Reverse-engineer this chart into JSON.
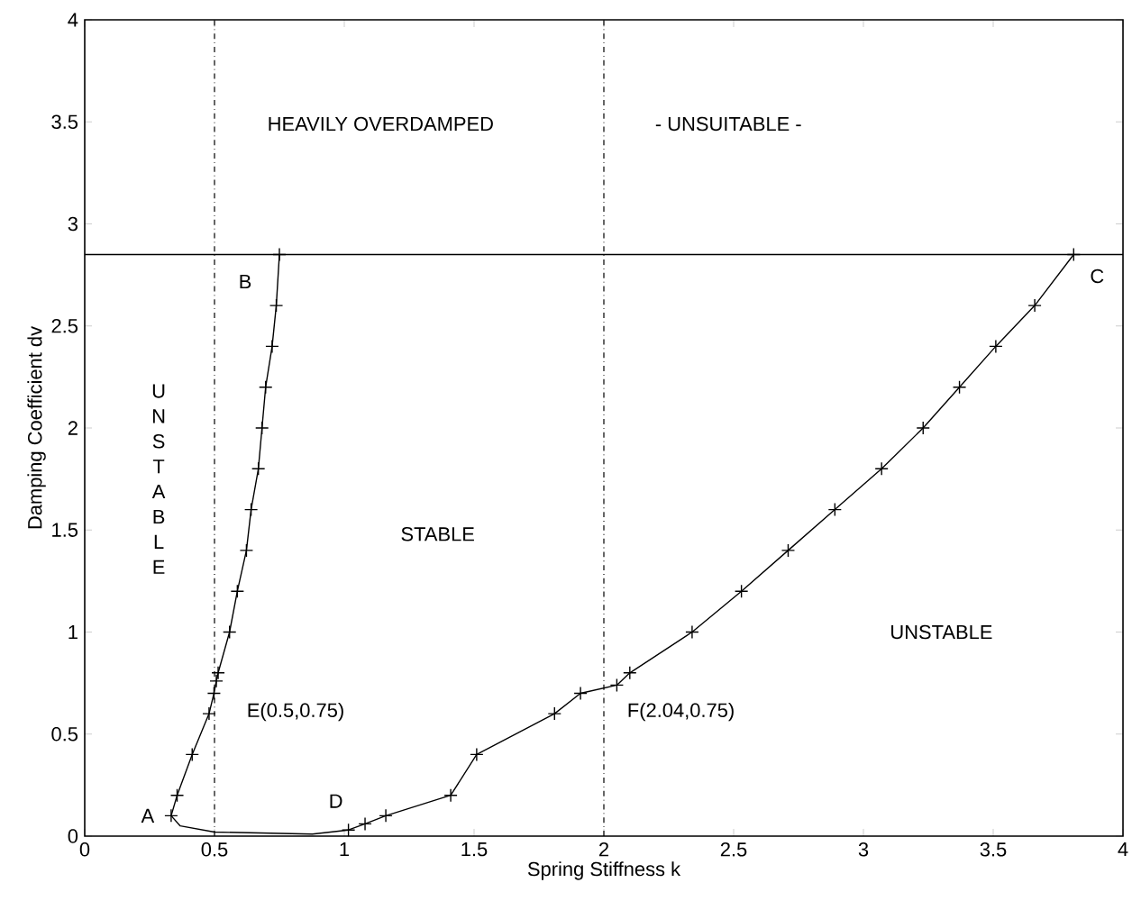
{
  "chart_data": {
    "type": "line",
    "xlabel": "Spring Stiffness k",
    "ylabel": "Damping Coefficient dv",
    "xlim": [
      0,
      4
    ],
    "ylim": [
      0,
      4
    ],
    "xticks": [
      0,
      0.5,
      1,
      1.5,
      2,
      2.5,
      3,
      3.5,
      4
    ],
    "yticks": [
      0,
      0.5,
      1,
      1.5,
      2,
      2.5,
      3,
      3.5,
      4
    ],
    "grid": false,
    "line_style": "solid",
    "series": [
      {
        "color": "#000000",
        "marker": "cross",
        "x": [
          0.75,
          0.738,
          0.722,
          0.697,
          0.683,
          0.669,
          0.641,
          0.623,
          0.588,
          0.558,
          0.514,
          0.507,
          0.498,
          0.479,
          0.414,
          0.356,
          0.333
        ],
        "values": [
          2.85,
          2.6,
          2.4,
          2.2,
          2.0,
          1.8,
          1.6,
          1.4,
          1.2,
          1.0,
          0.8,
          0.76,
          0.7,
          0.6,
          0.4,
          0.2,
          0.1
        ]
      },
      {
        "color": "#000000",
        "marker": "none",
        "x": [
          0.333,
          0.368,
          0.5,
          0.877,
          1.016
        ],
        "values": [
          0.1,
          0.05,
          0.02,
          0.01,
          0.03
        ]
      },
      {
        "color": "#000000",
        "marker": "cross",
        "x": [
          1.016,
          1.08,
          1.16,
          1.41,
          1.51,
          1.81,
          1.91,
          2.05,
          2.1,
          2.34,
          2.53,
          2.71,
          2.89,
          3.07,
          3.23,
          3.37,
          3.51,
          3.66,
          3.81
        ],
        "values": [
          0.03,
          0.06,
          0.1,
          0.2,
          0.4,
          0.6,
          0.7,
          0.74,
          0.8,
          1.0,
          1.2,
          1.4,
          1.6,
          1.8,
          2.0,
          2.2,
          2.4,
          2.6,
          2.85
        ]
      }
    ],
    "ref_lines": [
      {
        "axis": "x",
        "value": 0.5,
        "line_style": "dashed"
      },
      {
        "axis": "x",
        "value": 2,
        "line_style": "dashed"
      },
      {
        "axis": "y",
        "value": 2.85,
        "line_style": "solid"
      }
    ],
    "annotations": [
      {
        "text": "A",
        "x": 0.333,
        "y": 0.1
      },
      {
        "text": "B",
        "x": 0.75,
        "y": 2.85
      },
      {
        "text": "C",
        "x": 3.81,
        "y": 2.85
      },
      {
        "text": "D",
        "x": 1.016,
        "y": 0.03
      },
      {
        "text": "E(0.5,0.75)",
        "x": 0.5,
        "y": 0.75
      },
      {
        "text": "F(2.04,0.75)",
        "x": 2.04,
        "y": 0.75
      },
      "STABLE",
      "UNSTABLE",
      "U N S T A B L E",
      "HEAVILY OVERDAMPED",
      "- UNSUITABLE -"
    ]
  }
}
